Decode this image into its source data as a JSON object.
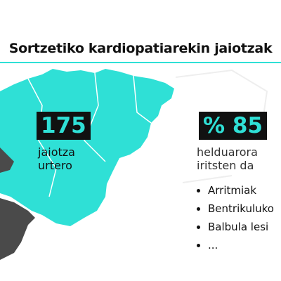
{
  "title": "Sortzetiko kardiopatiarekin jaiotzak",
  "stats": [
    {
      "value": "175",
      "caption": [
        "jaiotza",
        "urtero"
      ]
    },
    {
      "value": "% 85",
      "caption": [
        "helduarora",
        "iritsten da"
      ]
    }
  ],
  "bullets": [
    "Arritmiak",
    "Bentrikuluko",
    "Balbula lesi",
    "..."
  ]
}
